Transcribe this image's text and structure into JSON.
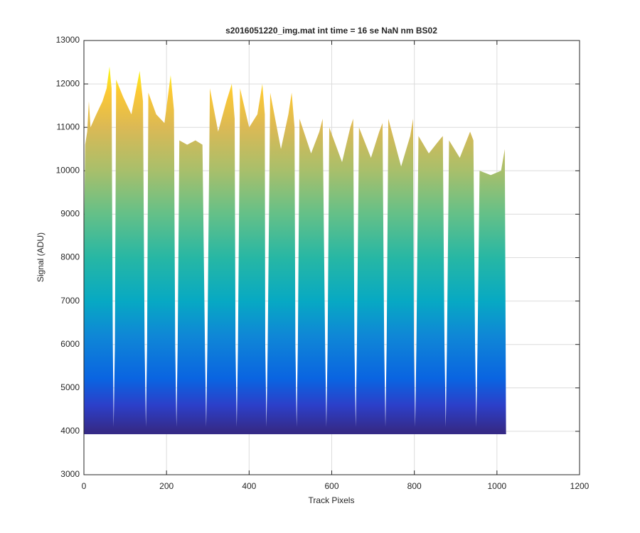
{
  "chart_data": {
    "type": "area",
    "title": "s2016051220_img.mat int time = 16 se  NaN nm BS02",
    "x_label": "Track Pixels",
    "y_label": "Signal (ADU)",
    "x": [
      0,
      1,
      3,
      8,
      12,
      16,
      30,
      45,
      55,
      62,
      67,
      70,
      72,
      75,
      78,
      95,
      115,
      135,
      143,
      147,
      150,
      153,
      156,
      175,
      195,
      210,
      218,
      221,
      224,
      227,
      231,
      250,
      270,
      287,
      293,
      296,
      299,
      305,
      325,
      345,
      358,
      365,
      367,
      370,
      373,
      378,
      400,
      420,
      432,
      438,
      439,
      442,
      445,
      451,
      477,
      495,
      503,
      510,
      512,
      515,
      518,
      522,
      550,
      570,
      578,
      584,
      587,
      590,
      594,
      625,
      645,
      652,
      655,
      658,
      661,
      666,
      695,
      715,
      723,
      727,
      730,
      733,
      737,
      768,
      790,
      797,
      799,
      802,
      805,
      810,
      835,
      860,
      869,
      873,
      876,
      879,
      884,
      910,
      935,
      943,
      947,
      950,
      953,
      958,
      985,
      1010,
      1019,
      1022
    ],
    "values": [
      3950,
      9000,
      10600,
      10900,
      11600,
      11000,
      11300,
      11600,
      11900,
      12400,
      11900,
      6000,
      4100,
      6000,
      12100,
      11700,
      11300,
      12300,
      11600,
      6000,
      4100,
      6000,
      11800,
      11300,
      11100,
      12200,
      11400,
      6000,
      4100,
      6000,
      10700,
      10600,
      10700,
      10600,
      6000,
      4100,
      6000,
      11900,
      10900,
      11600,
      12000,
      11200,
      6000,
      4100,
      6000,
      11900,
      11000,
      11300,
      12000,
      11300,
      6000,
      4100,
      6000,
      11800,
      10500,
      11300,
      11800,
      11000,
      6000,
      4100,
      6000,
      11200,
      10400,
      10900,
      11200,
      6000,
      4100,
      6000,
      11000,
      10200,
      11000,
      11200,
      6000,
      4100,
      6000,
      11000,
      10300,
      10900,
      11100,
      6000,
      4100,
      6000,
      11200,
      10100,
      10800,
      11200,
      6000,
      4100,
      6000,
      10800,
      10400,
      10700,
      10800,
      6000,
      4100,
      6000,
      10700,
      10300,
      10900,
      10700,
      6000,
      4100,
      6000,
      10000,
      9900,
      10000,
      10500,
      3950
    ],
    "baseline": 3950,
    "colorscale": [
      [
        4000,
        "#352a87"
      ],
      [
        4600,
        "#2c3fc9"
      ],
      [
        5200,
        "#0a64e1"
      ],
      [
        6200,
        "#0f87d6"
      ],
      [
        7000,
        "#07a9c3"
      ],
      [
        8000,
        "#27b7a4"
      ],
      [
        9000,
        "#64c088"
      ],
      [
        10000,
        "#a8bf6b"
      ],
      [
        11000,
        "#dbb955"
      ],
      [
        11800,
        "#fcc834"
      ],
      [
        12400,
        "#f9fb0e"
      ]
    ],
    "xlim": [
      0,
      1200
    ],
    "ylim": [
      3000,
      13000
    ],
    "xticks": [
      0,
      200,
      400,
      600,
      800,
      1000,
      1200
    ],
    "yticks": [
      3000,
      4000,
      5000,
      6000,
      7000,
      8000,
      9000,
      10000,
      11000,
      12000,
      13000
    ],
    "grid": true
  }
}
